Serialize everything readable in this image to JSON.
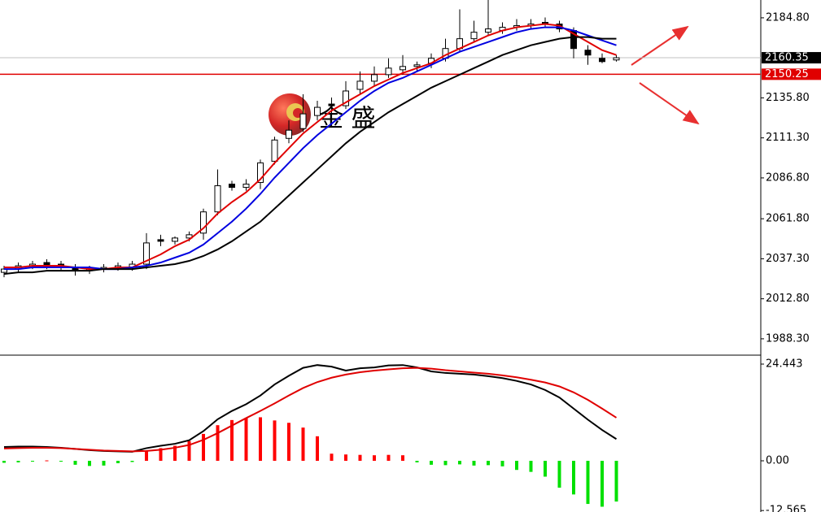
{
  "watermark": "金 盛",
  "chart_data": [
    {
      "type": "candlestick",
      "open": [
        2029,
        2031,
        2033,
        2035,
        2034,
        2032,
        2030,
        2031,
        2032,
        2032,
        2034,
        2049,
        2048,
        2050,
        2053,
        2066,
        2083,
        2081,
        2084,
        2097,
        2111,
        2117,
        2125,
        2132,
        2131,
        2141,
        2146,
        2150,
        2153,
        2155,
        2157,
        2160,
        2166,
        2172,
        2176,
        2177,
        2179,
        2180,
        2182,
        2181,
        2177,
        2165,
        2160,
        2159
      ],
      "high": [
        2033,
        2035,
        2036,
        2037,
        2036,
        2034,
        2033,
        2034,
        2035,
        2036,
        2053,
        2052,
        2051,
        2054,
        2068,
        2092,
        2085,
        2086,
        2098,
        2112,
        2122,
        2138,
        2134,
        2136,
        2146,
        2152,
        2155,
        2160,
        2162,
        2158,
        2163,
        2172,
        2190,
        2183,
        2196,
        2182,
        2184,
        2184,
        2185,
        2183,
        2179,
        2168,
        2163,
        2162
      ],
      "low": [
        2026,
        2029,
        2031,
        2031,
        2030,
        2027,
        2028,
        2029,
        2030,
        2030,
        2031,
        2045,
        2046,
        2048,
        2049,
        2064,
        2079,
        2079,
        2080,
        2095,
        2108,
        2115,
        2122,
        2126,
        2129,
        2138,
        2143,
        2148,
        2150,
        2152,
        2154,
        2158,
        2164,
        2170,
        2174,
        2175,
        2177,
        2178,
        2179,
        2176,
        2160,
        2156,
        2157,
        2158
      ],
      "close": [
        2031,
        2033,
        2034,
        2033,
        2032,
        2030,
        2031,
        2032,
        2033,
        2034,
        2047,
        2048,
        2050,
        2052,
        2066,
        2082,
        2081,
        2083,
        2096,
        2110,
        2116,
        2126,
        2130,
        2131,
        2140,
        2146,
        2150,
        2154,
        2155,
        2156,
        2160,
        2166,
        2172,
        2176,
        2178,
        2179,
        2180,
        2181,
        2181,
        2178,
        2166,
        2162,
        2158,
        2160.35
      ],
      "series": [
        {
          "color": "#e00000",
          "values": [
            2032,
            2032,
            2033,
            2033,
            2033,
            2032,
            2031,
            2031,
            2032,
            2032,
            2036,
            2040,
            2045,
            2049,
            2056,
            2065,
            2072,
            2078,
            2086,
            2096,
            2105,
            2114,
            2121,
            2128,
            2133,
            2138,
            2143,
            2147,
            2151,
            2154,
            2157,
            2162,
            2166,
            2170,
            2174,
            2177,
            2179,
            2180,
            2181,
            2180,
            2175,
            2170,
            2165,
            2162
          ]
        },
        {
          "color": "#0000e0",
          "values": [
            2031,
            2031,
            2032,
            2032,
            2032,
            2032,
            2032,
            2031,
            2031,
            2032,
            2033,
            2035,
            2038,
            2041,
            2046,
            2053,
            2060,
            2068,
            2077,
            2087,
            2096,
            2105,
            2113,
            2120,
            2127,
            2134,
            2140,
            2145,
            2148,
            2152,
            2156,
            2160,
            2164,
            2167,
            2170,
            2173,
            2176,
            2178,
            2179,
            2179,
            2177,
            2174,
            2171,
            2168
          ]
        },
        {
          "color": "#000000",
          "values": [
            2028,
            2029,
            2029,
            2030,
            2030,
            2030,
            2030,
            2031,
            2031,
            2031,
            2032,
            2033,
            2034,
            2036,
            2039,
            2043,
            2048,
            2054,
            2060,
            2068,
            2076,
            2084,
            2092,
            2100,
            2108,
            2115,
            2121,
            2127,
            2132,
            2137,
            2142,
            2146,
            2150,
            2154,
            2158,
            2162,
            2165,
            2168,
            2170,
            2172,
            2173,
            2173,
            2172,
            2172
          ]
        }
      ],
      "price_lines": [
        {
          "value": 2160.35,
          "color": "#000000",
          "line_color": "#c0c0c0"
        },
        {
          "value": 2150.25,
          "color": "#e00000",
          "line_color": "#e00000"
        }
      ],
      "ylim": [
        1978.3,
        2195.7
      ],
      "yticks": [
        {
          "value": 2184.8,
          "label": "2184.80"
        },
        {
          "value": 2135.8,
          "label": "2135.80"
        },
        {
          "value": 2111.3,
          "label": "2111.30"
        },
        {
          "value": 2086.8,
          "label": "2086.80"
        },
        {
          "value": 2061.8,
          "label": "2061.80"
        },
        {
          "value": 2037.3,
          "label": "2037.30"
        },
        {
          "value": 2012.8,
          "label": "2012.80"
        },
        {
          "value": 1988.3,
          "label": "1988.30"
        }
      ]
    },
    {
      "type": "macd",
      "series": [
        {
          "color": "#000000",
          "values": [
            3.5,
            3.6,
            3.6,
            3.5,
            3.3,
            3.0,
            2.7,
            2.5,
            2.4,
            2.3,
            3.2,
            3.8,
            4.3,
            5.2,
            7.5,
            10.5,
            12.6,
            14.3,
            16.5,
            19.3,
            21.5,
            23.5,
            24.2,
            23.8,
            22.8,
            23.4,
            23.6,
            24.1,
            24.2,
            23.6,
            22.6,
            22.2,
            22.0,
            21.8,
            21.4,
            20.9,
            20.2,
            19.3,
            17.9,
            16.0,
            13.2,
            10.4,
            7.8,
            5.5
          ]
        },
        {
          "color": "#e00000",
          "values": [
            3.1,
            3.2,
            3.3,
            3.3,
            3.2,
            3.0,
            2.8,
            2.6,
            2.5,
            2.4,
            2.5,
            2.8,
            3.3,
            4.0,
            5.3,
            7.0,
            8.9,
            10.8,
            12.6,
            14.5,
            16.5,
            18.4,
            19.9,
            21.0,
            21.8,
            22.4,
            22.8,
            23.1,
            23.4,
            23.5,
            23.3,
            22.9,
            22.6,
            22.3,
            22.0,
            21.6,
            21.1,
            20.5,
            19.8,
            18.8,
            17.3,
            15.4,
            13.2,
            10.9
          ]
        }
      ],
      "histogram": {
        "positive_color": "#ff0000",
        "negative_color": "#00e000",
        "values": [
          -0.5,
          -0.4,
          -0.2,
          0.1,
          -0.2,
          -1.0,
          -1.3,
          -1.2,
          -0.6,
          -0.3,
          2.4,
          3.2,
          3.8,
          5.0,
          6.8,
          9.0,
          10.3,
          10.8,
          11.0,
          10.2,
          9.6,
          8.4,
          6.2,
          1.8,
          1.6,
          1.5,
          1.4,
          1.5,
          1.4,
          -0.4,
          -1.0,
          -1.1,
          -0.9,
          -1.2,
          -1.1,
          -1.4,
          -2.3,
          -2.8,
          -4.0,
          -6.8,
          -8.5,
          -10.9,
          -11.6,
          -10.3
        ]
      },
      "ylim": [
        -12.94,
        26.5
      ],
      "yticks": [
        24.443,
        {
          "value": 0,
          "label": "0.00"
        },
        -12.565
      ]
    }
  ]
}
